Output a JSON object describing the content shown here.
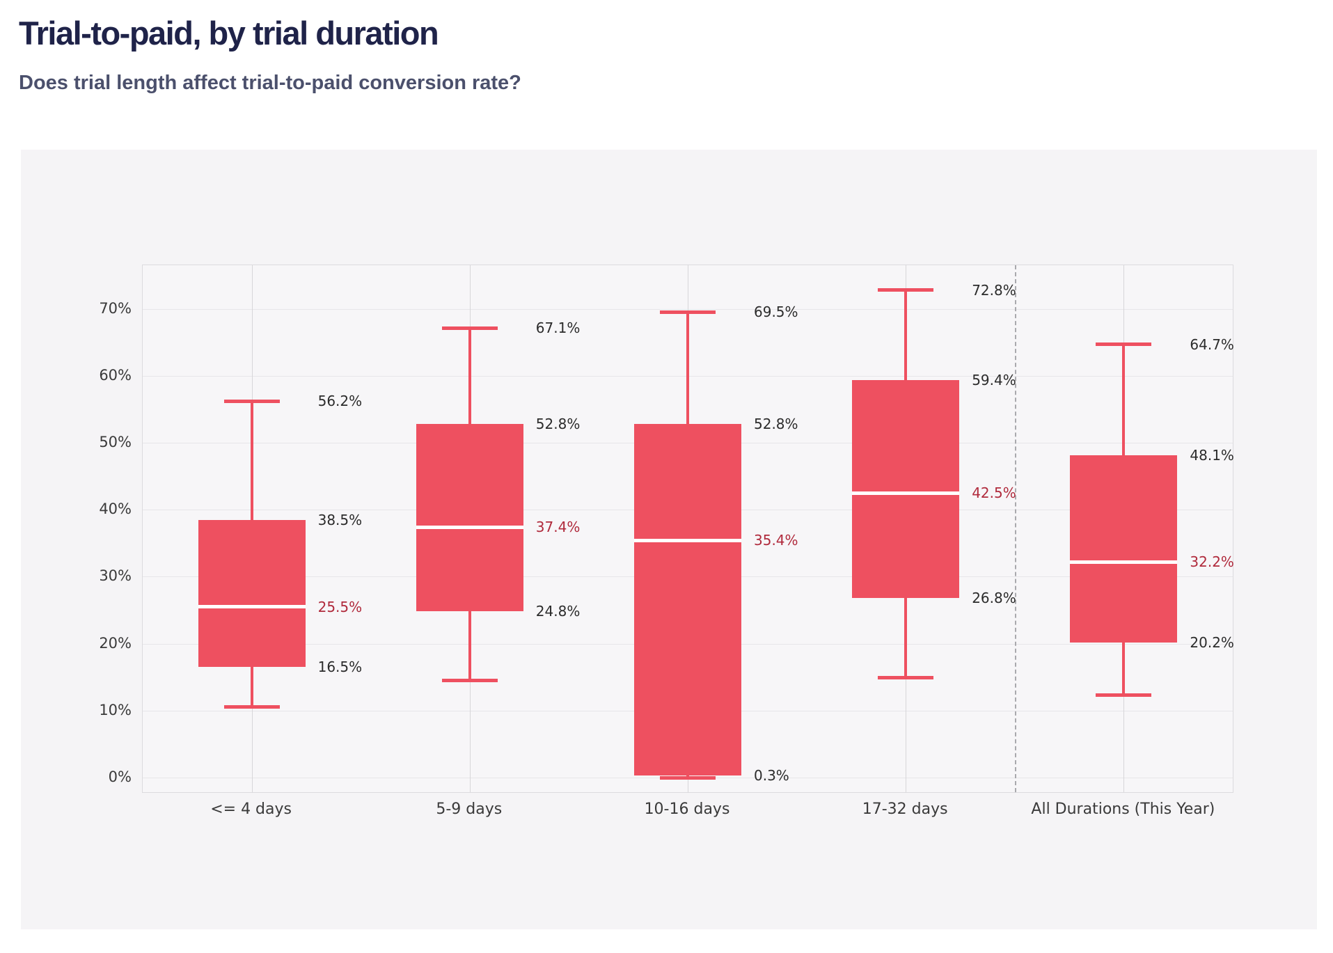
{
  "header": {
    "title": "Trial-to-paid, by trial duration",
    "subtitle": "Does trial length affect trial-to-paid conversion rate?"
  },
  "chart_data": {
    "type": "boxplot",
    "title": "Trial-to-paid, by trial duration",
    "subtitle": "Does trial length affect trial-to-paid conversion rate?",
    "categories": [
      "<= 4 days",
      "5-9 days",
      "10-16 days",
      "17-32 days",
      "All Durations (This Year)"
    ],
    "series": [
      {
        "category": "<= 4 days",
        "low": 10.6,
        "q1": 16.5,
        "median": 25.5,
        "q3": 38.5,
        "high": 56.2
      },
      {
        "category": "5-9 days",
        "low": 14.5,
        "q1": 24.8,
        "median": 37.4,
        "q3": 52.8,
        "high": 67.1
      },
      {
        "category": "10-16 days",
        "low": 0.0,
        "q1": 0.3,
        "median": 35.4,
        "q3": 52.8,
        "high": 69.5
      },
      {
        "category": "17-32 days",
        "low": 14.9,
        "q1": 26.8,
        "median": 42.5,
        "q3": 59.4,
        "high": 72.8
      },
      {
        "category": "All Durations (This Year)",
        "low": 12.3,
        "q1": 20.2,
        "median": 32.2,
        "q3": 48.1,
        "high": 64.7
      }
    ],
    "labeled_stats": [
      "high",
      "q3",
      "median",
      "q1"
    ],
    "value_label_format": "one-decimal-percent",
    "y_axis": {
      "tick_min": 0,
      "tick_max": 70,
      "tick_step": 10,
      "tick_format": "percent",
      "tick_labels": [
        "0%",
        "10%",
        "20%",
        "30%",
        "40%",
        "50%",
        "60%",
        "70%"
      ]
    },
    "separator_after_category_index": 3,
    "grid": true,
    "legend": false,
    "colors": {
      "box": "#ee5060",
      "whisker": "#ee5060",
      "median_line": "#ffffff",
      "value_label": "#2b2b2b",
      "median_label": "#b02a3c",
      "dashed_separator": "#a9a9ad"
    }
  }
}
